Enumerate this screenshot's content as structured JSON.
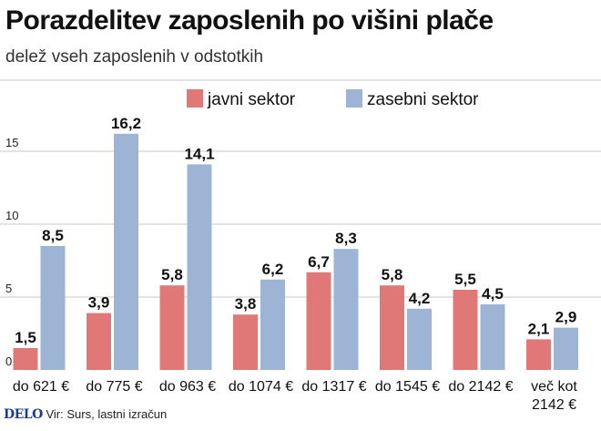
{
  "header": {
    "title": "Porazdelitev zaposlenih po višini plače",
    "subtitle": "delež vseh zaposlenih v odstotkih"
  },
  "footer": {
    "logo": "DELO",
    "source": "Vir: Surs, lastni izračun"
  },
  "colors": {
    "javni": "#e07878",
    "zasebni": "#9db4d4",
    "grid": "#c8c8c8"
  },
  "chart_data": {
    "type": "bar",
    "title": "Porazdelitev zaposlenih po višini plače",
    "subtitle": "delež vseh zaposlenih v odstotkih",
    "categories": [
      "do 621 €",
      "do 775 €",
      "do 963 €",
      "do 1074 €",
      "do 1317 €",
      "do 1545 €",
      "do 2142 €",
      "več kot 2142 €"
    ],
    "series": [
      {
        "name": "javni sektor",
        "values": [
          1.5,
          3.9,
          5.8,
          3.8,
          6.7,
          5.8,
          5.5,
          2.1
        ],
        "labels": [
          "1,5",
          "3,9",
          "5,8",
          "3,8",
          "6,7",
          "5,8",
          "5,5",
          "2,1"
        ]
      },
      {
        "name": "zasebni sektor",
        "values": [
          8.5,
          16.2,
          14.1,
          6.2,
          8.3,
          4.2,
          4.5,
          2.9
        ],
        "labels": [
          "8,5",
          "16,2",
          "14,1",
          "6,2",
          "8,3",
          "4,2",
          "4,5",
          "2,9"
        ]
      }
    ],
    "yticks": [
      0,
      5,
      10,
      15
    ],
    "ylim": [
      0,
      18
    ],
    "grid": true,
    "legend": "top-center"
  }
}
